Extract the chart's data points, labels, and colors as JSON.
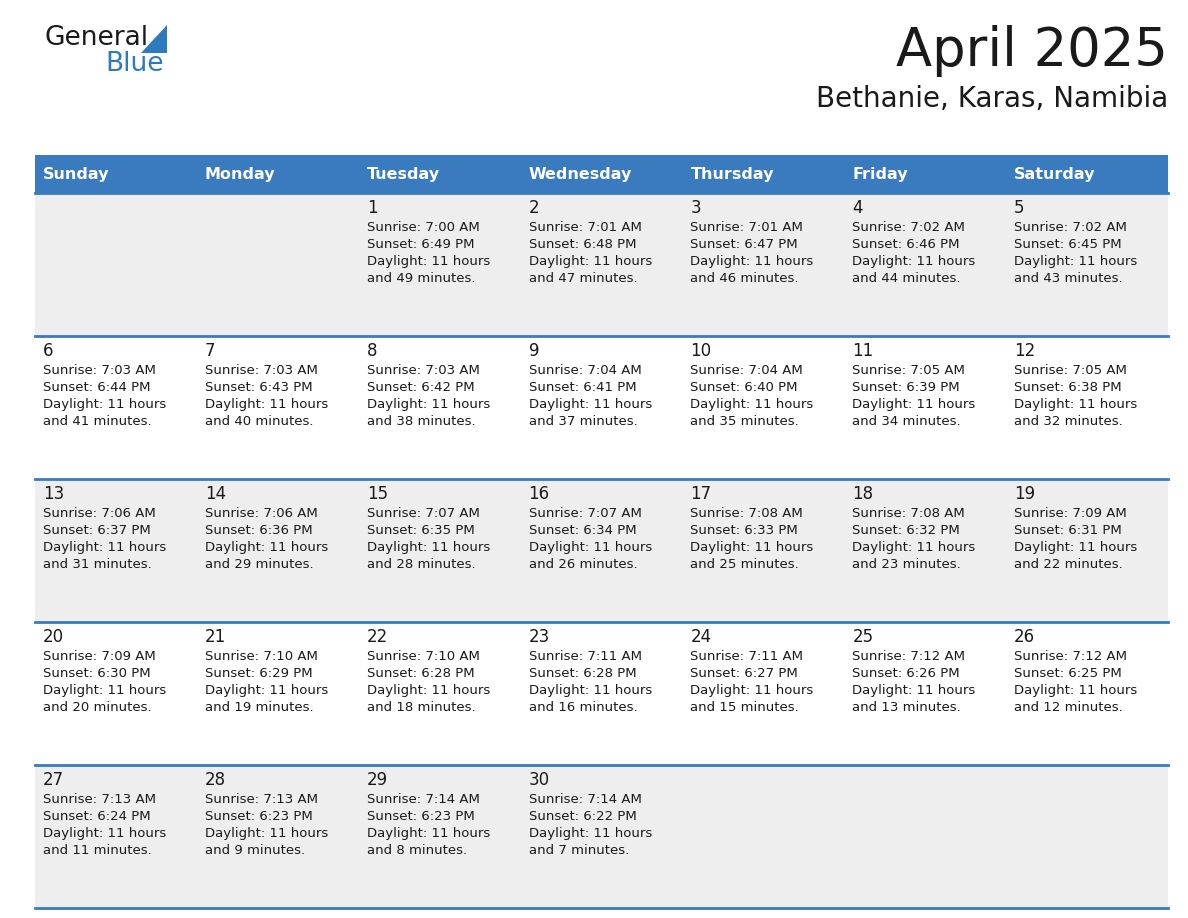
{
  "title": "April 2025",
  "subtitle": "Bethanie, Karas, Namibia",
  "header_bg": "#3a7abf",
  "header_text_color": "#ffffff",
  "row0_bg": "#eeeeee",
  "row1_bg": "#ffffff",
  "border_color": "#3a7abf",
  "text_color": "#1a1a1a",
  "days_of_week": [
    "Sunday",
    "Monday",
    "Tuesday",
    "Wednesday",
    "Thursday",
    "Friday",
    "Saturday"
  ],
  "weeks": [
    [
      {
        "day": "",
        "sunrise": "",
        "sunset": "",
        "daylight": ""
      },
      {
        "day": "",
        "sunrise": "",
        "sunset": "",
        "daylight": ""
      },
      {
        "day": "1",
        "sunrise": "7:00 AM",
        "sunset": "6:49 PM",
        "daylight": "11 hours and 49 minutes."
      },
      {
        "day": "2",
        "sunrise": "7:01 AM",
        "sunset": "6:48 PM",
        "daylight": "11 hours and 47 minutes."
      },
      {
        "day": "3",
        "sunrise": "7:01 AM",
        "sunset": "6:47 PM",
        "daylight": "11 hours and 46 minutes."
      },
      {
        "day": "4",
        "sunrise": "7:02 AM",
        "sunset": "6:46 PM",
        "daylight": "11 hours and 44 minutes."
      },
      {
        "day": "5",
        "sunrise": "7:02 AM",
        "sunset": "6:45 PM",
        "daylight": "11 hours and 43 minutes."
      }
    ],
    [
      {
        "day": "6",
        "sunrise": "7:03 AM",
        "sunset": "6:44 PM",
        "daylight": "11 hours and 41 minutes."
      },
      {
        "day": "7",
        "sunrise": "7:03 AM",
        "sunset": "6:43 PM",
        "daylight": "11 hours and 40 minutes."
      },
      {
        "day": "8",
        "sunrise": "7:03 AM",
        "sunset": "6:42 PM",
        "daylight": "11 hours and 38 minutes."
      },
      {
        "day": "9",
        "sunrise": "7:04 AM",
        "sunset": "6:41 PM",
        "daylight": "11 hours and 37 minutes."
      },
      {
        "day": "10",
        "sunrise": "7:04 AM",
        "sunset": "6:40 PM",
        "daylight": "11 hours and 35 minutes."
      },
      {
        "day": "11",
        "sunrise": "7:05 AM",
        "sunset": "6:39 PM",
        "daylight": "11 hours and 34 minutes."
      },
      {
        "day": "12",
        "sunrise": "7:05 AM",
        "sunset": "6:38 PM",
        "daylight": "11 hours and 32 minutes."
      }
    ],
    [
      {
        "day": "13",
        "sunrise": "7:06 AM",
        "sunset": "6:37 PM",
        "daylight": "11 hours and 31 minutes."
      },
      {
        "day": "14",
        "sunrise": "7:06 AM",
        "sunset": "6:36 PM",
        "daylight": "11 hours and 29 minutes."
      },
      {
        "day": "15",
        "sunrise": "7:07 AM",
        "sunset": "6:35 PM",
        "daylight": "11 hours and 28 minutes."
      },
      {
        "day": "16",
        "sunrise": "7:07 AM",
        "sunset": "6:34 PM",
        "daylight": "11 hours and 26 minutes."
      },
      {
        "day": "17",
        "sunrise": "7:08 AM",
        "sunset": "6:33 PM",
        "daylight": "11 hours and 25 minutes."
      },
      {
        "day": "18",
        "sunrise": "7:08 AM",
        "sunset": "6:32 PM",
        "daylight": "11 hours and 23 minutes."
      },
      {
        "day": "19",
        "sunrise": "7:09 AM",
        "sunset": "6:31 PM",
        "daylight": "11 hours and 22 minutes."
      }
    ],
    [
      {
        "day": "20",
        "sunrise": "7:09 AM",
        "sunset": "6:30 PM",
        "daylight": "11 hours and 20 minutes."
      },
      {
        "day": "21",
        "sunrise": "7:10 AM",
        "sunset": "6:29 PM",
        "daylight": "11 hours and 19 minutes."
      },
      {
        "day": "22",
        "sunrise": "7:10 AM",
        "sunset": "6:28 PM",
        "daylight": "11 hours and 18 minutes."
      },
      {
        "day": "23",
        "sunrise": "7:11 AM",
        "sunset": "6:28 PM",
        "daylight": "11 hours and 16 minutes."
      },
      {
        "day": "24",
        "sunrise": "7:11 AM",
        "sunset": "6:27 PM",
        "daylight": "11 hours and 15 minutes."
      },
      {
        "day": "25",
        "sunrise": "7:12 AM",
        "sunset": "6:26 PM",
        "daylight": "11 hours and 13 minutes."
      },
      {
        "day": "26",
        "sunrise": "7:12 AM",
        "sunset": "6:25 PM",
        "daylight": "11 hours and 12 minutes."
      }
    ],
    [
      {
        "day": "27",
        "sunrise": "7:13 AM",
        "sunset": "6:24 PM",
        "daylight": "11 hours and 11 minutes."
      },
      {
        "day": "28",
        "sunrise": "7:13 AM",
        "sunset": "6:23 PM",
        "daylight": "11 hours and 9 minutes."
      },
      {
        "day": "29",
        "sunrise": "7:14 AM",
        "sunset": "6:23 PM",
        "daylight": "11 hours and 8 minutes."
      },
      {
        "day": "30",
        "sunrise": "7:14 AM",
        "sunset": "6:22 PM",
        "daylight": "11 hours and 7 minutes."
      },
      {
        "day": "",
        "sunrise": "",
        "sunset": "",
        "daylight": ""
      },
      {
        "day": "",
        "sunrise": "",
        "sunset": "",
        "daylight": ""
      },
      {
        "day": "",
        "sunrise": "",
        "sunset": "",
        "daylight": ""
      }
    ]
  ],
  "logo_text1": "General",
  "logo_text2": "Blue",
  "logo_color1": "#1a1a1a",
  "logo_color2": "#2e7abf",
  "logo_triangle_color": "#2e7abf",
  "figw": 11.88,
  "figh": 9.18,
  "dpi": 100
}
